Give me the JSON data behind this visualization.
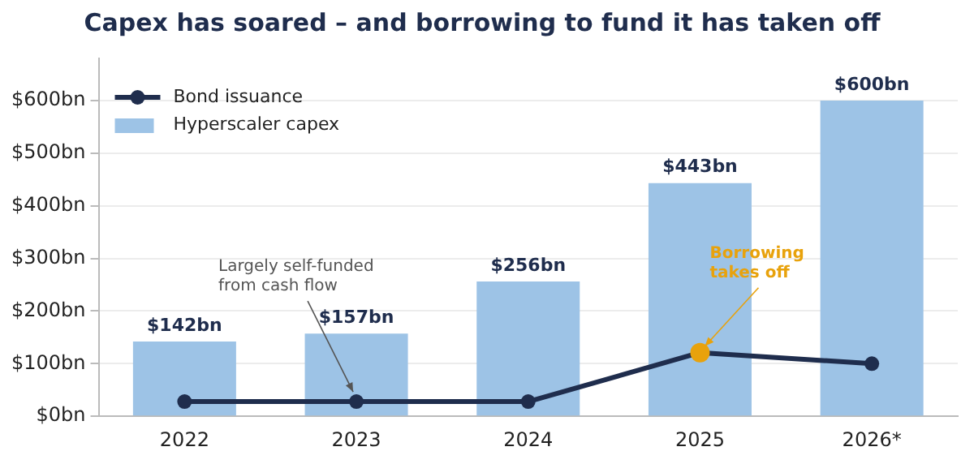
{
  "chart_data": {
    "type": "bar",
    "title": "Capex has soared – and borrowing to fund it has taken off",
    "categories": [
      "2022",
      "2023",
      "2024",
      "2025",
      "2026*"
    ],
    "series": [
      {
        "name": "Bond issuance",
        "type": "line",
        "color": "#1f2d4d",
        "colors": [
          "#1f2d4d",
          "#1f2d4d",
          "#1f2d4d",
          "#e8a20c",
          "#1f2d4d"
        ],
        "values": [
          28,
          28,
          28,
          121,
          100
        ]
      },
      {
        "name": "Hyperscaler capex",
        "color": "#9dc3e6",
        "values": [
          142,
          157,
          256,
          443,
          600
        ],
        "value_labels": [
          "$142bn",
          "$157bn",
          "$256bn",
          "$443bn",
          "$600bn"
        ]
      }
    ],
    "ylim": [
      0,
      680
    ],
    "yticks": [
      {
        "value": 0,
        "label": "$0bn"
      },
      {
        "value": 100,
        "label": "$100bn"
      },
      {
        "value": 200,
        "label": "$200bn"
      },
      {
        "value": 300,
        "label": "$300bn"
      },
      {
        "value": 400,
        "label": "$400bn"
      },
      {
        "value": 500,
        "label": "$500bn"
      },
      {
        "value": 600,
        "label": "$600bn"
      }
    ],
    "grid": "y",
    "legend": "top left",
    "marker": "circle",
    "line_style": "solid",
    "annotations": [
      {
        "text": "Largely self-funded\nfrom cash flow",
        "x": "2023",
        "y": 28
      },
      {
        "text": "Borrowing\ntakes off",
        "x": "2025",
        "y": 121
      }
    ]
  }
}
